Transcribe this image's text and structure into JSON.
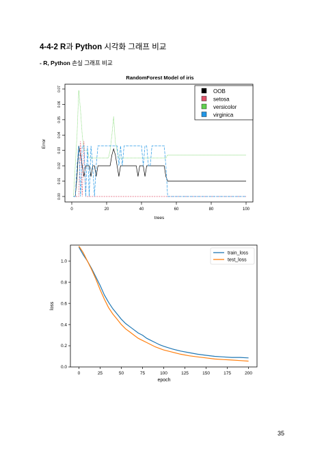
{
  "page": {
    "heading_bold1": "4-4-2 R",
    "heading_mid": "과 ",
    "heading_bold2": "Python",
    "heading_rest": " 시각화 그래프 비교",
    "sub_bold": "- R, Python",
    "sub_rest": " 손실 그래프 비교",
    "page_number": "35"
  },
  "colors": {
    "oob": "#000000",
    "setosa": "#df536b",
    "versicolor": "#61d04f",
    "virginica": "#2297e6",
    "train": "#1f77b4",
    "test": "#ff7f0e"
  },
  "chart_data": [
    {
      "type": "line",
      "title": "RandomForest Model of iris",
      "xlabel": "trees",
      "ylabel": "Error",
      "xlim": [
        0,
        100
      ],
      "ylim": [
        0,
        0.07
      ],
      "x_ticks": [
        "0",
        "20",
        "40",
        "60",
        "80",
        "100"
      ],
      "y_ticks": [
        "0.00",
        "0.01",
        "0.02",
        "0.03",
        "0.04",
        "0.05",
        "0.06",
        "0.07"
      ],
      "legend_position": "top-right",
      "series": [
        {
          "name": "OOB",
          "color_key": "oob",
          "x": [
            1,
            2,
            3,
            4,
            5,
            6,
            7,
            8,
            9,
            10,
            11,
            12,
            13,
            14,
            15,
            16,
            17,
            18,
            19,
            20,
            21,
            22,
            23,
            24,
            25,
            26,
            27,
            28,
            29,
            30,
            31,
            32,
            33,
            34,
            35,
            36,
            37,
            38,
            39,
            40,
            41,
            42,
            43,
            44,
            45,
            46,
            47,
            48,
            49,
            50,
            51,
            52,
            53,
            54,
            55,
            56,
            57,
            58,
            59,
            60,
            61,
            62,
            63,
            64,
            65,
            66,
            67,
            68,
            69,
            70,
            71,
            72,
            73,
            74,
            75,
            76,
            77,
            78,
            79,
            80,
            81,
            82,
            83,
            84,
            85,
            86,
            87,
            88,
            89,
            90,
            91,
            92,
            93,
            94,
            95,
            96,
            97,
            98,
            99,
            100
          ],
          "y": [
            0,
            0,
            0.013,
            0.033,
            0.027,
            0.02,
            0.013,
            0.02,
            0.02,
            0.02,
            0.013,
            0.02,
            0.02,
            0.013,
            0.02,
            0.02,
            0.02,
            0.02,
            0.02,
            0.02,
            0.02,
            0.02,
            0.027,
            0.031,
            0.027,
            0.02,
            0.013,
            0.02,
            0.02,
            0.02,
            0.02,
            0.02,
            0.02,
            0.02,
            0.02,
            0.02,
            0.02,
            0.013,
            0.02,
            0.02,
            0.02,
            0.013,
            0.02,
            0.02,
            0.02,
            0.02,
            0.02,
            0.02,
            0.02,
            0.02,
            0.02,
            0.02,
            0.02,
            0.013,
            0.01,
            0.01,
            0.01,
            0.01,
            0.01,
            0.01,
            0.01,
            0.01,
            0.01,
            0.01,
            0.01,
            0.01,
            0.01,
            0.01,
            0.01,
            0.01,
            0.01,
            0.01,
            0.01,
            0.01,
            0.01,
            0.01,
            0.01,
            0.01,
            0.01,
            0.01,
            0.01,
            0.01,
            0.01,
            0.01,
            0.01,
            0.01,
            0.01,
            0.01,
            0.01,
            0.01,
            0.01,
            0.01,
            0.01,
            0.01,
            0.01,
            0.01,
            0.01,
            0.01,
            0.01,
            0.01
          ]
        },
        {
          "name": "setosa",
          "color_key": "setosa",
          "x": [
            1,
            4,
            5,
            6,
            7,
            8,
            9,
            10,
            100
          ],
          "y": [
            0,
            0,
            0.036,
            0,
            0.036,
            0,
            0,
            0,
            0
          ]
        },
        {
          "name": "versicolor",
          "color_key": "versicolor",
          "x": [
            1,
            2,
            3,
            4,
            5,
            6,
            7,
            8,
            9,
            10,
            11,
            12,
            13,
            14,
            15,
            16,
            17,
            18,
            19,
            20,
            21,
            22,
            23,
            24,
            25,
            26,
            27,
            28,
            29,
            30,
            31,
            32,
            33,
            34,
            35,
            36,
            37,
            38,
            39,
            40,
            41,
            42,
            43,
            44,
            45,
            46,
            47,
            48,
            49,
            50,
            51,
            52,
            53,
            54,
            55,
            56,
            57,
            58,
            59,
            60,
            61,
            62,
            63,
            64,
            65,
            66,
            67,
            68,
            69,
            70,
            71,
            72,
            73,
            74,
            75,
            76,
            77,
            78,
            79,
            80,
            81,
            82,
            83,
            84,
            85,
            86,
            87,
            88,
            89,
            90,
            91,
            92,
            93,
            94,
            95,
            96,
            97,
            98,
            99,
            100
          ],
          "y": [
            0,
            0.02,
            0.04,
            0.069,
            0.056,
            0.04,
            0.03,
            0.03,
            0.03,
            0.025,
            0.025,
            0.025,
            0.025,
            0.025,
            0.025,
            0.025,
            0.025,
            0.025,
            0.025,
            0.025,
            0.025,
            0.03,
            0.04,
            0.052,
            0.035,
            0.03,
            0.025,
            0.025,
            0.025,
            0.025,
            0.025,
            0.025,
            0.025,
            0.025,
            0.025,
            0.025,
            0.025,
            0.025,
            0.025,
            0.025,
            0.025,
            0.025,
            0.025,
            0.025,
            0.025,
            0.025,
            0.025,
            0.025,
            0.025,
            0.025,
            0.025,
            0.025,
            0.025,
            0.025,
            0.027,
            0.027,
            0.027,
            0.027,
            0.027,
            0.027,
            0.027,
            0.027,
            0.027,
            0.027,
            0.027,
            0.027,
            0.027,
            0.027,
            0.027,
            0.027,
            0.027,
            0.027,
            0.027,
            0.027,
            0.027,
            0.027,
            0.027,
            0.027,
            0.027,
            0.027,
            0.027,
            0.027,
            0.027,
            0.027,
            0.027,
            0.027,
            0.027,
            0.027,
            0.027,
            0.027,
            0.027,
            0.027,
            0.027,
            0.027,
            0.027,
            0.027,
            0.027,
            0.027,
            0.027,
            0.027
          ]
        },
        {
          "name": "virginica",
          "color_key": "virginica",
          "x": [
            1,
            2,
            3,
            4,
            5,
            6,
            7,
            8,
            9,
            10,
            11,
            12,
            13,
            14,
            15,
            16,
            17,
            18,
            19,
            20,
            21,
            22,
            23,
            24,
            25,
            26,
            27,
            28,
            29,
            30,
            31,
            32,
            33,
            34,
            35,
            36,
            37,
            38,
            39,
            40,
            41,
            42,
            43,
            44,
            45,
            46,
            47,
            48,
            49,
            50,
            51,
            52,
            53,
            54,
            55,
            56,
            57,
            58,
            59,
            60,
            61,
            62,
            63,
            64,
            65,
            66,
            67,
            68,
            69,
            70,
            71,
            72,
            73,
            74,
            75,
            76,
            77,
            78,
            79,
            80,
            81,
            82,
            83,
            84,
            85,
            86,
            87,
            88,
            89,
            90,
            91,
            92,
            93,
            94,
            95,
            96,
            97,
            98,
            99,
            100
          ],
          "y": [
            0,
            0,
            0.02,
            0.033,
            0,
            0.033,
            0.033,
            0,
            0.033,
            0,
            0.033,
            0.02,
            0,
            0.02,
            0.033,
            0.033,
            0.033,
            0.033,
            0.033,
            0.033,
            0.033,
            0.033,
            0.033,
            0.033,
            0.033,
            0.033,
            0.02,
            0.033,
            0.02,
            0.033,
            0.033,
            0.033,
            0.033,
            0.033,
            0.033,
            0.033,
            0.033,
            0.033,
            0.033,
            0.033,
            0.02,
            0.033,
            0.033,
            0.02,
            0.02,
            0.033,
            0.033,
            0.033,
            0.033,
            0.033,
            0.033,
            0.033,
            0.033,
            0.02,
            0,
            0,
            0,
            0,
            0,
            0,
            0,
            0,
            0,
            0,
            0,
            0,
            0,
            0,
            0,
            0,
            0,
            0,
            0,
            0,
            0,
            0,
            0,
            0,
            0,
            0,
            0,
            0,
            0,
            0,
            0,
            0,
            0,
            0,
            0,
            0,
            0,
            0,
            0,
            0,
            0,
            0,
            0,
            0,
            0,
            0
          ]
        }
      ]
    },
    {
      "type": "line",
      "title": "",
      "xlabel": "epoch",
      "ylabel": "loss",
      "xlim": [
        -10,
        210
      ],
      "ylim": [
        0,
        1.15
      ],
      "x_ticks": [
        "0",
        "25",
        "50",
        "75",
        "100",
        "125",
        "150",
        "175",
        "200"
      ],
      "y_ticks": [
        "0.0",
        "0.2",
        "0.4",
        "0.6",
        "0.8",
        "1.0"
      ],
      "legend_position": "top-right",
      "series": [
        {
          "name": "train_loss",
          "color_key": "train",
          "x": [
            0,
            5,
            10,
            15,
            20,
            25,
            30,
            35,
            40,
            45,
            50,
            55,
            60,
            65,
            70,
            75,
            80,
            85,
            90,
            95,
            100,
            110,
            120,
            130,
            140,
            150,
            160,
            170,
            180,
            190,
            200
          ],
          "y": [
            1.13,
            1.06,
            1.0,
            0.93,
            0.85,
            0.77,
            0.68,
            0.61,
            0.55,
            0.5,
            0.45,
            0.41,
            0.38,
            0.35,
            0.32,
            0.3,
            0.27,
            0.25,
            0.23,
            0.21,
            0.195,
            0.17,
            0.15,
            0.135,
            0.12,
            0.11,
            0.1,
            0.095,
            0.09,
            0.09,
            0.085
          ]
        },
        {
          "name": "test_loss",
          "color_key": "test",
          "x": [
            0,
            5,
            10,
            15,
            20,
            25,
            30,
            35,
            40,
            45,
            50,
            55,
            60,
            65,
            70,
            75,
            80,
            85,
            90,
            95,
            100,
            110,
            120,
            130,
            140,
            150,
            160,
            170,
            180,
            190,
            200
          ],
          "y": [
            1.14,
            1.08,
            1.0,
            0.92,
            0.83,
            0.73,
            0.64,
            0.56,
            0.5,
            0.45,
            0.4,
            0.36,
            0.33,
            0.3,
            0.27,
            0.25,
            0.23,
            0.21,
            0.19,
            0.175,
            0.16,
            0.14,
            0.12,
            0.105,
            0.095,
            0.085,
            0.075,
            0.07,
            0.065,
            0.06,
            0.055
          ]
        }
      ]
    }
  ]
}
